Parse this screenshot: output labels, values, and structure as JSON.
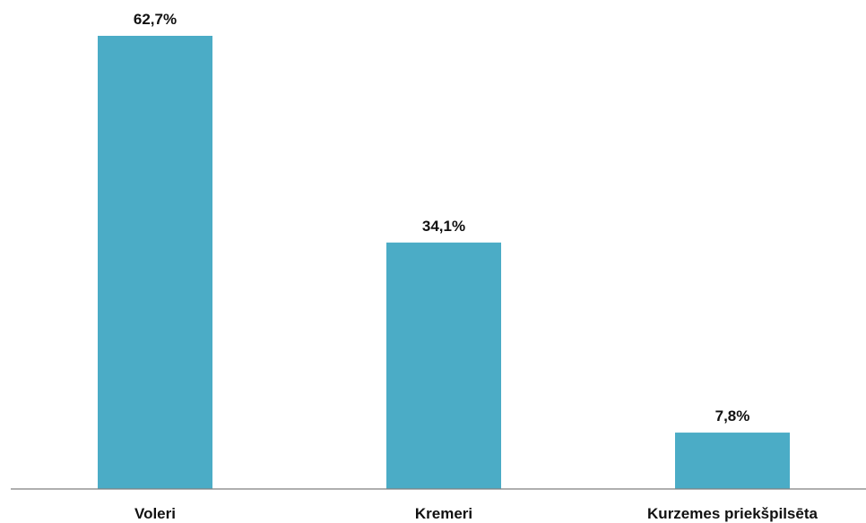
{
  "chart_data": {
    "type": "bar",
    "categories": [
      "Voleri",
      "Kremeri",
      "Kurzemes priekšpilsēta"
    ],
    "values": [
      62.7,
      34.1,
      7.8
    ],
    "value_labels": [
      "62,7%",
      "34,1%",
      "7,8%"
    ],
    "title": "",
    "xlabel": "",
    "ylabel": "",
    "ylim": [
      0,
      70
    ],
    "grid": false,
    "legend": "none",
    "bar_color": "#4BACC6",
    "axis_color": "#7F7F7F"
  }
}
